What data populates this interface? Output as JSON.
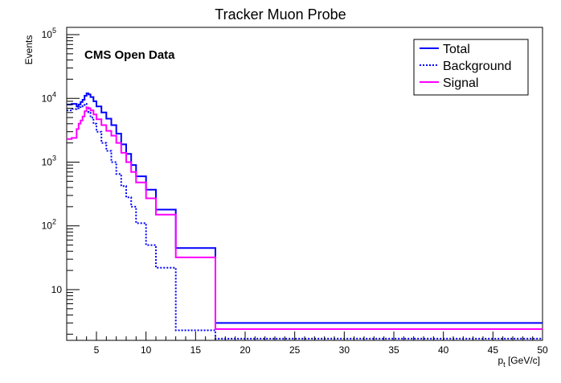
{
  "chart_data": {
    "type": "line",
    "title": "Tracker Muon Probe",
    "xlabel": "p_t [GeV/c]",
    "ylabel": "Events",
    "xlim": [
      2,
      50
    ],
    "ylim": [
      1.6,
      130000
    ],
    "yscale": "log",
    "grid": false,
    "legend_position": "top-right",
    "annotation": "CMS Open Data",
    "x_ticks": [
      "5",
      "10",
      "15",
      "20",
      "25",
      "30",
      "35",
      "40",
      "45",
      "50"
    ],
    "x_tick_values": [
      5,
      10,
      15,
      20,
      25,
      30,
      35,
      40,
      45,
      50
    ],
    "y_ticks": [
      {
        "value": 10,
        "base": "10",
        "exp": ""
      },
      {
        "value": 100,
        "base": "10",
        "exp": "2"
      },
      {
        "value": 1000,
        "base": "10",
        "exp": "3"
      },
      {
        "value": 10000,
        "base": "10",
        "exp": "4"
      },
      {
        "value": 100000,
        "base": "10",
        "exp": "5"
      }
    ],
    "bin_edges": [
      2.0,
      2.5,
      3.0,
      3.2,
      3.4,
      3.6,
      3.8,
      4.0,
      4.2,
      4.4,
      4.7,
      5.0,
      5.5,
      6.0,
      6.5,
      7.0,
      7.5,
      8.0,
      8.5,
      9.0,
      10.0,
      11.0,
      13.0,
      17.0,
      50.0
    ],
    "series": [
      {
        "name": "Total",
        "color": "#0000ff",
        "style": "solid",
        "values": [
          8000,
          8200,
          7500,
          8000,
          8800,
          9500,
          11000,
          12000,
          11500,
          10500,
          9000,
          7500,
          6000,
          4800,
          3800,
          2800,
          1900,
          1350,
          900,
          600,
          370,
          180,
          45,
          3.0
        ]
      },
      {
        "name": "Background",
        "color": "#0000ff",
        "style": "dotted",
        "values": [
          6500,
          6800,
          7000,
          7300,
          7500,
          7800,
          8200,
          7000,
          6000,
          5000,
          4000,
          3000,
          2000,
          1500,
          1000,
          650,
          420,
          280,
          200,
          110,
          50,
          22,
          2.3,
          1.7
        ]
      },
      {
        "name": "Signal",
        "color": "#ff00ff",
        "style": "solid",
        "values": [
          2300,
          2400,
          3300,
          4000,
          4500,
          5200,
          6300,
          7200,
          7000,
          6500,
          5600,
          4700,
          3800,
          3100,
          2600,
          2000,
          1400,
          1000,
          700,
          480,
          270,
          150,
          32,
          2.4
        ]
      }
    ]
  }
}
